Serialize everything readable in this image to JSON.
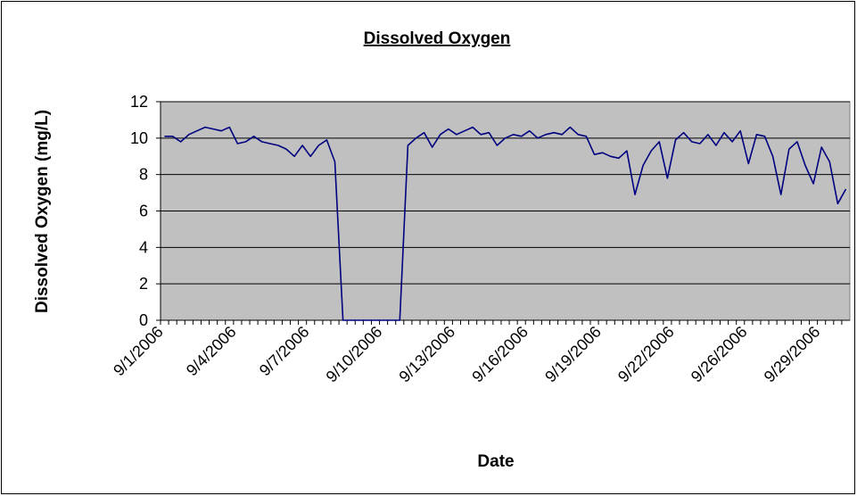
{
  "chart_data": {
    "type": "line",
    "title": "Dissolved Oxygen",
    "x_label": "Date",
    "y_label": "Dissolved Oxygen (mg/L)",
    "categories": [
      "9/1/2006",
      null,
      null,
      null,
      null,
      null,
      null,
      null,
      null,
      "9/4/2006",
      null,
      null,
      null,
      null,
      null,
      null,
      null,
      null,
      "9/7/2006",
      null,
      null,
      null,
      null,
      null,
      null,
      null,
      null,
      "9/10/2006",
      null,
      null,
      null,
      null,
      null,
      null,
      null,
      null,
      "9/13/2006",
      null,
      null,
      null,
      null,
      null,
      null,
      null,
      null,
      "9/16/2006",
      null,
      null,
      null,
      null,
      null,
      null,
      null,
      null,
      "9/19/2006",
      null,
      null,
      null,
      null,
      null,
      null,
      null,
      null,
      "9/22/2006",
      null,
      null,
      null,
      null,
      null,
      null,
      null,
      null,
      "9/26/2006",
      null,
      null,
      null,
      null,
      null,
      null,
      null,
      null,
      "9/29/2006",
      null,
      null,
      null
    ],
    "series": [
      {
        "name": "Dissolved Oxygen",
        "color": "#000080",
        "values": [
          10.1,
          10.1,
          9.8,
          10.2,
          10.4,
          10.6,
          10.5,
          10.4,
          10.6,
          9.7,
          9.8,
          10.1,
          9.8,
          9.7,
          9.6,
          9.4,
          9.0,
          9.6,
          9.0,
          9.6,
          9.9,
          8.7,
          0,
          0,
          0,
          0,
          0,
          0,
          0,
          0,
          9.6,
          10.0,
          10.3,
          9.5,
          10.2,
          10.5,
          10.2,
          10.4,
          10.6,
          10.2,
          10.3,
          9.6,
          10.0,
          10.2,
          10.1,
          10.4,
          10.0,
          10.2,
          10.3,
          10.2,
          10.6,
          10.2,
          10.1,
          9.1,
          9.2,
          9.0,
          8.9,
          9.3,
          6.9,
          8.5,
          9.3,
          9.8,
          7.8,
          9.9,
          10.3,
          9.8,
          9.7,
          10.2,
          9.6,
          10.3,
          9.8,
          10.4,
          8.6,
          10.2,
          10.1,
          9.0,
          6.9,
          9.4,
          9.8,
          8.5,
          7.5,
          9.5,
          8.7,
          6.4,
          7.2
        ]
      }
    ],
    "ylim": [
      0,
      12
    ],
    "yticks": [
      0,
      2,
      4,
      6,
      8,
      10,
      12
    ],
    "grid": true,
    "plot_background": "#c0c0c0"
  }
}
